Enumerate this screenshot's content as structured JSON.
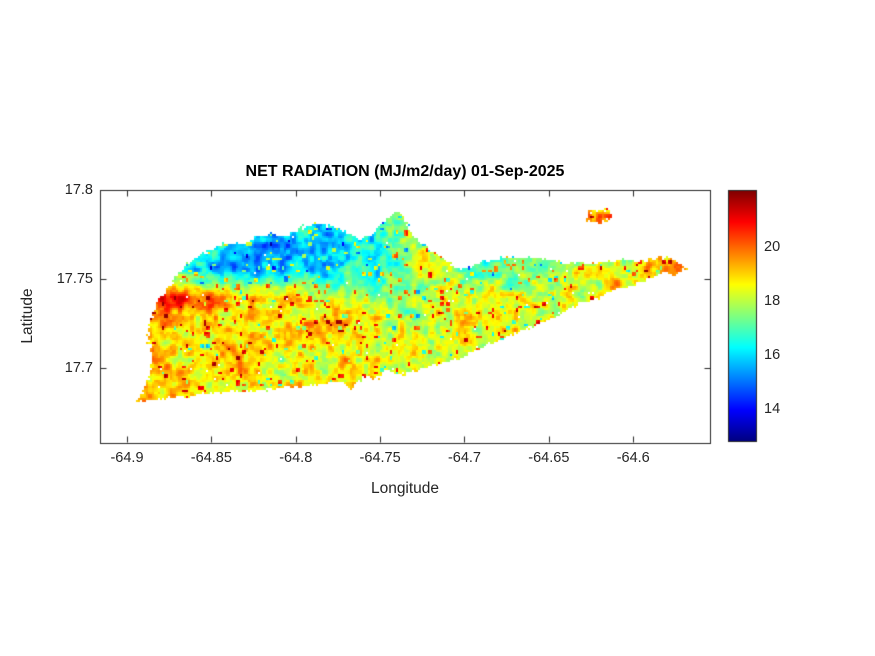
{
  "figure": {
    "background": "#ffffff",
    "axis_color": "#262626"
  },
  "chart_data": {
    "type": "heatmap",
    "title": "NET RADIATION (MJ/m2/day) 01-Sep-2025",
    "xlabel": "Longitude",
    "ylabel": "Latitude",
    "value_units": "MJ/m2/day",
    "colormap": "jet",
    "clim": [
      12.8,
      22.1
    ],
    "xlim": [
      -64.916,
      -64.5545
    ],
    "ylim": [
      17.6575,
      17.8
    ],
    "x_ticks": [
      -64.9,
      -64.85,
      -64.8,
      -64.75,
      -64.7,
      -64.65,
      -64.6
    ],
    "x_tick_labels": [
      "-64.9",
      "-64.85",
      "-64.8",
      "-64.75",
      "-64.7",
      "-64.65",
      "-64.6"
    ],
    "y_ticks": [
      17.8,
      17.75,
      17.7
    ],
    "y_tick_labels": [
      "17.8",
      "17.75",
      "17.7"
    ],
    "colorbar_ticks": [
      20,
      18,
      16,
      14
    ],
    "colorbar_tick_labels": [
      "20",
      "18",
      "16",
      "14"
    ],
    "grid_lons": [
      -64.89,
      -64.87,
      -64.85,
      -64.83,
      -64.81,
      -64.79,
      -64.77,
      -64.75,
      -64.73,
      -64.71,
      -64.69,
      -64.67,
      -64.65,
      -64.63,
      -64.61,
      -64.59,
      -64.57
    ],
    "grid_lats": [
      17.785,
      17.77,
      17.755,
      17.74,
      17.725,
      17.71,
      17.695,
      17.68
    ],
    "values_grid": [
      [
        null,
        null,
        null,
        null,
        17.2,
        16.8,
        16.5,
        17.0,
        18.0,
        null,
        null,
        null,
        null,
        19.6,
        null,
        null,
        null
      ],
      [
        null,
        null,
        16.8,
        15.6,
        15.4,
        15.6,
        15.9,
        16.4,
        17.6,
        null,
        null,
        null,
        null,
        null,
        null,
        null,
        null
      ],
      [
        18.0,
        17.2,
        15.8,
        15.3,
        15.6,
        16.0,
        16.3,
        16.8,
        17.8,
        18.4,
        16.8,
        16.9,
        17.4,
        18.3,
        18.6,
        18.9,
        19.8
      ],
      [
        20.3,
        20.5,
        20.0,
        19.2,
        18.8,
        18.6,
        17.6,
        17.3,
        17.8,
        18.4,
        18.4,
        18.2,
        18.4,
        18.6,
        18.7,
        19.2,
        null
      ],
      [
        19.5,
        19.0,
        18.5,
        18.4,
        18.6,
        19.8,
        19.2,
        18.4,
        18.4,
        18.6,
        18.6,
        18.7,
        null,
        null,
        null,
        null,
        null
      ],
      [
        19.2,
        18.6,
        18.8,
        19.3,
        18.5,
        18.8,
        18.9,
        18.3,
        18.5,
        18.5,
        18.5,
        null,
        null,
        null,
        null,
        null,
        null
      ],
      [
        19.4,
        19.0,
        18.6,
        18.7,
        18.9,
        18.6,
        18.8,
        18.7,
        18.4,
        null,
        null,
        null,
        null,
        null,
        null,
        null,
        null
      ],
      [
        19.6,
        19.0,
        18.6,
        null,
        null,
        null,
        null,
        null,
        null,
        null,
        null,
        null,
        null,
        null,
        null,
        null,
        null
      ]
    ],
    "noise_amplitude": 1.3,
    "island_outline_lonlat": [
      [
        -64.896,
        17.68
      ],
      [
        -64.888,
        17.691
      ],
      [
        -64.885,
        17.704
      ],
      [
        -64.888,
        17.721
      ],
      [
        -64.883,
        17.735
      ],
      [
        -64.875,
        17.747
      ],
      [
        -64.867,
        17.755
      ],
      [
        -64.859,
        17.762
      ],
      [
        -64.851,
        17.766
      ],
      [
        -64.842,
        17.77
      ],
      [
        -64.832,
        17.769
      ],
      [
        -64.822,
        17.774
      ],
      [
        -64.814,
        17.776
      ],
      [
        -64.805,
        17.774
      ],
      [
        -64.796,
        17.779
      ],
      [
        -64.788,
        17.781
      ],
      [
        -64.779,
        17.779
      ],
      [
        -64.77,
        17.776
      ],
      [
        -64.762,
        17.772
      ],
      [
        -64.754,
        17.775
      ],
      [
        -64.747,
        17.783
      ],
      [
        -64.741,
        17.788
      ],
      [
        -64.736,
        17.785
      ],
      [
        -64.732,
        17.778
      ],
      [
        -64.728,
        17.771
      ],
      [
        -64.721,
        17.767
      ],
      [
        -64.713,
        17.762
      ],
      [
        -64.707,
        17.757
      ],
      [
        -64.702,
        17.755
      ],
      [
        -64.694,
        17.757
      ],
      [
        -64.686,
        17.76
      ],
      [
        -64.676,
        17.762
      ],
      [
        -64.664,
        17.762
      ],
      [
        -64.653,
        17.761
      ],
      [
        -64.641,
        17.759
      ],
      [
        -64.629,
        17.759
      ],
      [
        -64.617,
        17.759
      ],
      [
        -64.605,
        17.761
      ],
      [
        -64.593,
        17.76
      ],
      [
        -64.583,
        17.762
      ],
      [
        -64.575,
        17.76
      ],
      [
        -64.567,
        17.757
      ],
      [
        -64.574,
        17.753
      ],
      [
        -64.583,
        17.753
      ],
      [
        -64.593,
        17.749
      ],
      [
        -64.602,
        17.746
      ],
      [
        -64.612,
        17.743
      ],
      [
        -64.621,
        17.739
      ],
      [
        -64.631,
        17.736
      ],
      [
        -64.64,
        17.732
      ],
      [
        -64.65,
        17.727
      ],
      [
        -64.659,
        17.723
      ],
      [
        -64.669,
        17.72
      ],
      [
        -64.678,
        17.716
      ],
      [
        -64.688,
        17.712
      ],
      [
        -64.697,
        17.708
      ],
      [
        -64.706,
        17.704
      ],
      [
        -64.716,
        17.702
      ],
      [
        -64.725,
        17.699
      ],
      [
        -64.734,
        17.697
      ],
      [
        -64.741,
        17.696
      ],
      [
        -64.747,
        17.699
      ],
      [
        -64.752,
        17.694
      ],
      [
        -64.76,
        17.695
      ],
      [
        -64.767,
        17.688
      ],
      [
        -64.773,
        17.692
      ],
      [
        -64.783,
        17.691
      ],
      [
        -64.795,
        17.689
      ],
      [
        -64.806,
        17.689
      ],
      [
        -64.819,
        17.687
      ],
      [
        -64.832,
        17.687
      ],
      [
        -64.845,
        17.686
      ],
      [
        -64.858,
        17.685
      ],
      [
        -64.872,
        17.683
      ],
      [
        -64.883,
        17.682
      ],
      [
        -64.892,
        17.681
      ]
    ],
    "buck_island_outline_lonlat": [
      [
        -64.629,
        17.784
      ],
      [
        -64.624,
        17.789
      ],
      [
        -64.616,
        17.789
      ],
      [
        -64.612,
        17.786
      ],
      [
        -64.616,
        17.782
      ],
      [
        -64.624,
        17.781
      ]
    ]
  }
}
